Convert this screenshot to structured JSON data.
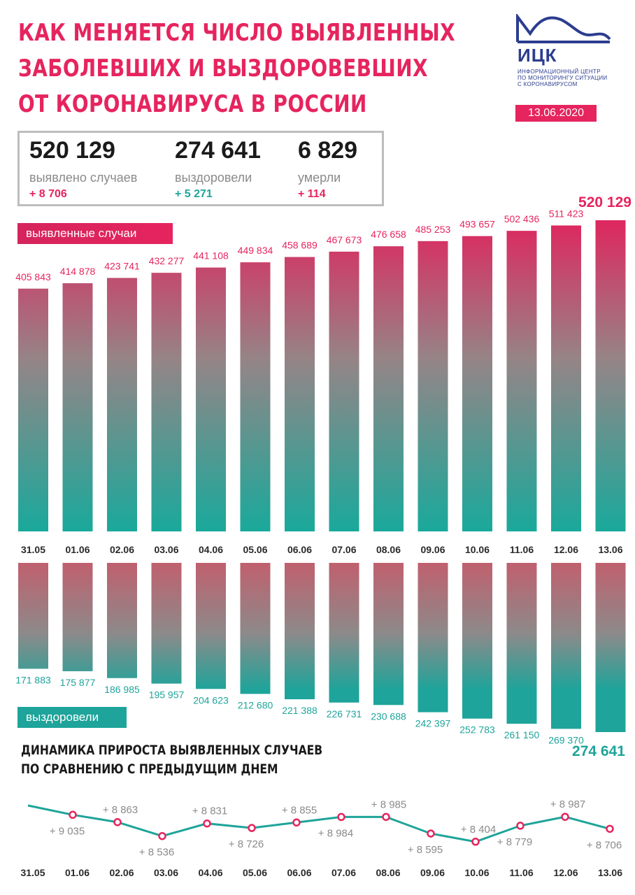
{
  "title_lines": [
    "КАК МЕНЯЕТСЯ ЧИСЛО ВЫЯВЛЕННЫХ",
    "ЗАБОЛЕВШИХ И ВЫЗДОРОВЕВШИХ",
    "ОТ КОРОНАВИРУСА В РОССИИ"
  ],
  "logo": {
    "abbr": "ИЦК",
    "subtitle_lines": [
      "информационный центр",
      "по мониторингу ситуации",
      "с коронавирусом"
    ]
  },
  "date": "13.06.2020",
  "stats": {
    "confirmed": {
      "value": "520 129",
      "label": "выявлено случаев",
      "delta": "+ 8 706"
    },
    "recovered": {
      "value": "274 641",
      "label": "выздоровели",
      "delta": "+ 5 271"
    },
    "deaths": {
      "value": "6 829",
      "label": "умерли",
      "delta": "+ 114"
    }
  },
  "colors": {
    "accent_pink": "#e6245e",
    "accent_teal": "#1ea49a",
    "text_dark": "#1a1a1a",
    "brand_blue": "#2c3d8f"
  },
  "chart_data": [
    {
      "type": "bar",
      "legend": "выявленные случаи",
      "categories": [
        "31.05",
        "01.06",
        "02.06",
        "03.06",
        "04.06",
        "05.06",
        "06.06",
        "07.06",
        "08.06",
        "09.06",
        "10.06",
        "11.06",
        "12.06",
        "13.06"
      ],
      "values": [
        405843,
        414878,
        423741,
        432277,
        441108,
        449834,
        458689,
        467673,
        476658,
        485253,
        493657,
        502436,
        511423,
        520129
      ],
      "value_labels": [
        "405 843",
        "414 878",
        "423 741",
        "432 277",
        "441 108",
        "449 834",
        "458 689",
        "467 673",
        "476 658",
        "485 253",
        "493 657",
        "502 436",
        "511 423",
        "520 129"
      ]
    },
    {
      "type": "bar",
      "legend": "выздоровели",
      "categories": [
        "31.05",
        "01.06",
        "02.06",
        "03.06",
        "04.06",
        "05.06",
        "06.06",
        "07.06",
        "08.06",
        "09.06",
        "10.06",
        "11.06",
        "12.06",
        "13.06"
      ],
      "values": [
        171883,
        175877,
        186985,
        195957,
        204623,
        212680,
        221388,
        226731,
        230688,
        242397,
        252783,
        261150,
        269370,
        274641
      ],
      "value_labels": [
        "171 883",
        "175 877",
        "186 985",
        "195 957",
        "204 623",
        "212 680",
        "221 388",
        "226 731",
        "230 688",
        "242 397",
        "252 783",
        "261 150",
        "269 370",
        "274 641"
      ]
    },
    {
      "type": "line",
      "title_lines": [
        "ДИНАМИКА ПРИРОСТА ВЫЯВЛЕННЫХ СЛУЧАЕВ",
        "ПО СРАВНЕНИЮ С ПРЕДЫДУЩИМ ДНЕМ"
      ],
      "categories": [
        "31.05",
        "01.06",
        "02.06",
        "03.06",
        "04.06",
        "05.06",
        "06.06",
        "07.06",
        "08.06",
        "09.06",
        "10.06",
        "11.06",
        "12.06",
        "13.06"
      ],
      "values": [
        null,
        9035,
        8863,
        8536,
        8831,
        8726,
        8855,
        8984,
        8985,
        8595,
        8404,
        8779,
        8987,
        8706
      ],
      "value_labels": [
        "",
        "+ 9 035",
        "+ 8 863",
        "+ 8 536",
        "+ 8 831",
        "+ 8 726",
        "+ 8 855",
        "+ 8 984",
        "+ 8 985",
        "+ 8 595",
        "+ 8 404",
        "+ 8 779",
        "+ 8 987",
        "+ 8 706"
      ]
    }
  ]
}
